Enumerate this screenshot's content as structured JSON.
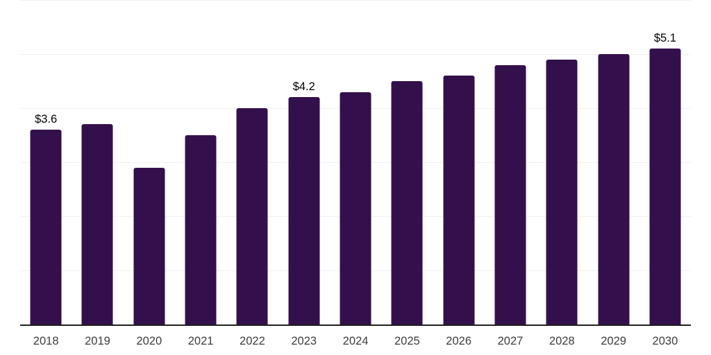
{
  "chart_data": {
    "type": "bar",
    "title": "",
    "xlabel": "",
    "ylabel": "",
    "categories": [
      "2018",
      "2019",
      "2020",
      "2021",
      "2022",
      "2023",
      "2024",
      "2025",
      "2026",
      "2027",
      "2028",
      "2029",
      "2030"
    ],
    "values": [
      3.6,
      3.7,
      2.9,
      3.5,
      4.0,
      4.2,
      4.3,
      4.5,
      4.6,
      4.8,
      4.9,
      5.0,
      5.1
    ],
    "data_labels": [
      {
        "category": "2018",
        "text": "$3.6"
      },
      {
        "category": "2023",
        "text": "$4.2"
      },
      {
        "category": "2030",
        "text": "$5.1"
      }
    ],
    "ylim": [
      0,
      6
    ],
    "grid_step": 1,
    "grid": true,
    "legend": false,
    "y_axis_labels_visible": false,
    "bar_color": "#33104c",
    "gridline_color": "#f0f0f3",
    "axis_line_color": "#1f1f1f",
    "tick_label_color": "#3d3d3d",
    "data_label_color": "#000000",
    "background_color": "#ffffff"
  }
}
